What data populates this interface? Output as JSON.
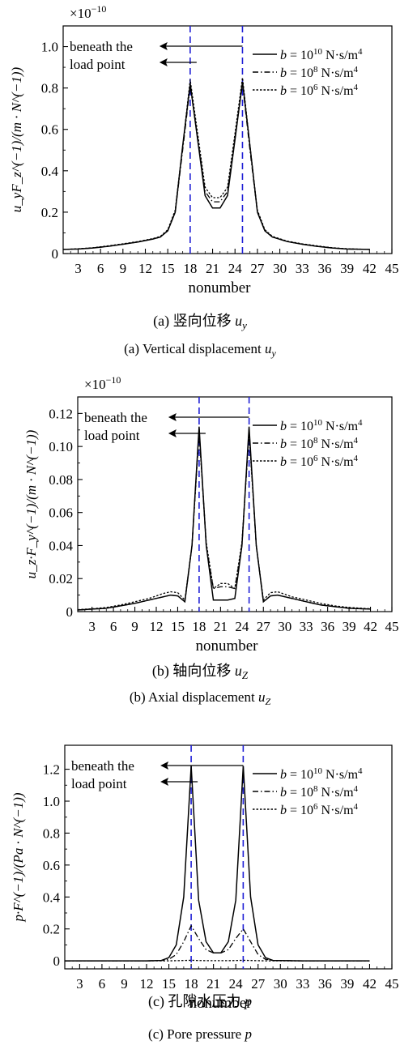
{
  "chart_data": [
    {
      "type": "line",
      "exponent": "×10",
      "exponent_power": "−10",
      "ylabel": "u_yF_z^(−1)/(m · N^(−1))",
      "xlabel": "nonumber",
      "caption_cn": "(a) 竖向位移 u",
      "caption_cn_sub": "y",
      "caption_en": "(a) Vertical displacement u",
      "caption_en_sub": "y",
      "annotation": [
        "beneath the",
        "load point"
      ],
      "ylim": [
        0,
        1.1
      ],
      "xlim": [
        1,
        45
      ],
      "yticks": [
        0,
        0.2,
        0.4,
        0.6,
        0.8,
        1.0
      ],
      "ytick_labels": [
        "0",
        "0.2",
        "0.4",
        "0.6",
        "0.8",
        "1.0"
      ],
      "xticks": [
        3,
        6,
        9,
        12,
        15,
        18,
        21,
        24,
        27,
        30,
        33,
        36,
        39,
        42,
        45
      ],
      "load_points": [
        18,
        25
      ],
      "legend": [
        {
          "prefix": "b = 10",
          "sup": "10",
          "unit": " N·s/m",
          "unit_sup": "4",
          "style": "solid"
        },
        {
          "prefix": "b = 10",
          "sup": "8",
          "unit": " N·s/m",
          "unit_sup": "4",
          "style": "dashdot"
        },
        {
          "prefix": "b = 10",
          "sup": "6",
          "unit": " N·s/m",
          "unit_sup": "4",
          "style": "dotted"
        }
      ],
      "x": [
        1,
        3,
        5,
        7,
        9,
        11,
        13,
        14,
        15,
        16,
        17,
        18,
        19,
        20,
        21,
        22,
        23,
        24,
        25,
        26,
        27,
        28,
        29,
        31,
        33,
        35,
        37,
        39,
        42
      ],
      "series": [
        {
          "values": [
            0.02,
            0.022,
            0.027,
            0.035,
            0.045,
            0.056,
            0.07,
            0.08,
            0.11,
            0.2,
            0.52,
            0.82,
            0.55,
            0.28,
            0.22,
            0.22,
            0.28,
            0.55,
            0.83,
            0.52,
            0.2,
            0.11,
            0.08,
            0.058,
            0.045,
            0.035,
            0.027,
            0.022,
            0.02
          ]
        },
        {
          "values": [
            0.02,
            0.022,
            0.027,
            0.035,
            0.045,
            0.056,
            0.07,
            0.08,
            0.11,
            0.2,
            0.5,
            0.81,
            0.56,
            0.3,
            0.25,
            0.25,
            0.3,
            0.56,
            0.82,
            0.5,
            0.2,
            0.11,
            0.08,
            0.058,
            0.045,
            0.035,
            0.027,
            0.022,
            0.02
          ]
        },
        {
          "values": [
            0.02,
            0.023,
            0.028,
            0.037,
            0.047,
            0.058,
            0.072,
            0.083,
            0.115,
            0.21,
            0.52,
            0.84,
            0.58,
            0.32,
            0.27,
            0.27,
            0.32,
            0.58,
            0.85,
            0.52,
            0.21,
            0.115,
            0.083,
            0.06,
            0.047,
            0.037,
            0.028,
            0.023,
            0.02
          ]
        }
      ]
    },
    {
      "type": "line",
      "exponent": "×10",
      "exponent_power": "−10",
      "ylabel": "u_z·F_y^(−1)/(m · N^(−1))",
      "xlabel": "nonumber",
      "caption_cn": "(b) 轴向位移 u",
      "caption_cn_sub": "Z",
      "caption_en": "(b) Axial displacement u",
      "caption_en_sub": "Z",
      "annotation": [
        "beneath the",
        "load point"
      ],
      "ylim": [
        0,
        0.13
      ],
      "xlim": [
        1,
        45
      ],
      "yticks": [
        0,
        0.02,
        0.04,
        0.06,
        0.08,
        0.1,
        0.12
      ],
      "ytick_labels": [
        "0",
        "0.02",
        "0.04",
        "0.06",
        "0.08",
        "0.10",
        "0.12"
      ],
      "xticks": [
        3,
        6,
        9,
        12,
        15,
        18,
        21,
        24,
        27,
        30,
        33,
        36,
        39,
        42,
        45
      ],
      "load_points": [
        18,
        25
      ],
      "legend": [
        {
          "prefix": "b = 10",
          "sup": "10",
          "unit": " N·s/m",
          "unit_sup": "4",
          "style": "solid"
        },
        {
          "prefix": "b = 10",
          "sup": "8",
          "unit": " N·s/m",
          "unit_sup": "4",
          "style": "dashdot"
        },
        {
          "prefix": "b = 10",
          "sup": "6",
          "unit": " N·s/m",
          "unit_sup": "4",
          "style": "dotted"
        }
      ],
      "x": [
        1,
        3,
        5,
        7,
        9,
        11,
        13,
        14,
        15,
        16,
        17,
        18,
        19,
        20,
        21,
        22,
        23,
        24,
        25,
        26,
        27,
        28,
        29,
        31,
        33,
        35,
        37,
        39,
        42
      ],
      "series": [
        {
          "values": [
            0.001,
            0.0015,
            0.002,
            0.0035,
            0.005,
            0.007,
            0.009,
            0.01,
            0.0095,
            0.006,
            0.04,
            0.112,
            0.04,
            0.007,
            0.007,
            0.007,
            0.008,
            0.04,
            0.112,
            0.04,
            0.006,
            0.0095,
            0.01,
            0.008,
            0.006,
            0.004,
            0.003,
            0.002,
            0.0015
          ]
        },
        {
          "values": [
            0.001,
            0.0015,
            0.002,
            0.0035,
            0.005,
            0.007,
            0.009,
            0.01,
            0.0095,
            0.006,
            0.04,
            0.11,
            0.04,
            0.014,
            0.015,
            0.015,
            0.014,
            0.04,
            0.11,
            0.04,
            0.006,
            0.0095,
            0.01,
            0.008,
            0.006,
            0.004,
            0.003,
            0.002,
            0.0015
          ]
        },
        {
          "values": [
            0.0012,
            0.0017,
            0.0025,
            0.004,
            0.006,
            0.008,
            0.011,
            0.012,
            0.0115,
            0.007,
            0.04,
            0.108,
            0.042,
            0.014,
            0.017,
            0.017,
            0.014,
            0.042,
            0.108,
            0.04,
            0.007,
            0.0115,
            0.012,
            0.009,
            0.007,
            0.005,
            0.0035,
            0.0025,
            0.0017
          ]
        }
      ]
    },
    {
      "type": "line",
      "exponent": "",
      "exponent_power": "",
      "ylabel": "p·F^(−1)/(Pa · N^(−1))",
      "xlabel": "nonumber",
      "caption_cn": "(c) 孔隙水压力 p",
      "caption_cn_sub": "",
      "caption_en": "(c) Pore pressure p",
      "caption_en_sub": "",
      "annotation": [
        "beneath the",
        "load point"
      ],
      "ylim": [
        -0.05,
        1.35
      ],
      "xlim": [
        1,
        45
      ],
      "yticks": [
        0,
        0.2,
        0.4,
        0.6,
        0.8,
        1.0,
        1.2
      ],
      "ytick_labels": [
        "0",
        "0.2",
        "0.4",
        "0.6",
        "0.8",
        "1.0",
        "1.2"
      ],
      "xticks": [
        3,
        6,
        9,
        12,
        15,
        18,
        21,
        24,
        27,
        30,
        33,
        36,
        39,
        42,
        45
      ],
      "load_points": [
        18,
        25
      ],
      "legend": [
        {
          "prefix": "b = 10",
          "sup": "10",
          "unit": " N·s/m",
          "unit_sup": "4",
          "style": "solid"
        },
        {
          "prefix": "b = 10",
          "sup": "8",
          "unit": " N·s/m",
          "unit_sup": "4",
          "style": "dashdot"
        },
        {
          "prefix": "b = 10",
          "sup": "6",
          "unit": " N·s/m",
          "unit_sup": "4",
          "style": "dotted"
        }
      ],
      "x": [
        1,
        3,
        6,
        9,
        12,
        14,
        15,
        16,
        17,
        18,
        19,
        20,
        21,
        22,
        23,
        24,
        25,
        26,
        27,
        28,
        29,
        33,
        37,
        42
      ],
      "series": [
        {
          "values": [
            0,
            0,
            0,
            0,
            0,
            0.003,
            0.02,
            0.1,
            0.4,
            1.22,
            0.38,
            0.12,
            0.05,
            0.05,
            0.12,
            0.38,
            1.22,
            0.4,
            0.1,
            0.02,
            0.003,
            0,
            0,
            0
          ]
        },
        {
          "values": [
            0,
            0,
            0,
            0,
            0,
            0.002,
            0.01,
            0.04,
            0.12,
            0.22,
            0.14,
            0.07,
            0.05,
            0.05,
            0.07,
            0.14,
            0.2,
            0.12,
            0.04,
            0.01,
            0.002,
            0,
            0,
            0
          ]
        },
        {
          "values": [
            0,
            0,
            0,
            0,
            0,
            0,
            0,
            0.001,
            0.002,
            0.004,
            0.002,
            0.001,
            0.001,
            0.001,
            0.001,
            0.002,
            0.004,
            0.002,
            0.001,
            0,
            0,
            0,
            0,
            0
          ]
        }
      ]
    }
  ]
}
